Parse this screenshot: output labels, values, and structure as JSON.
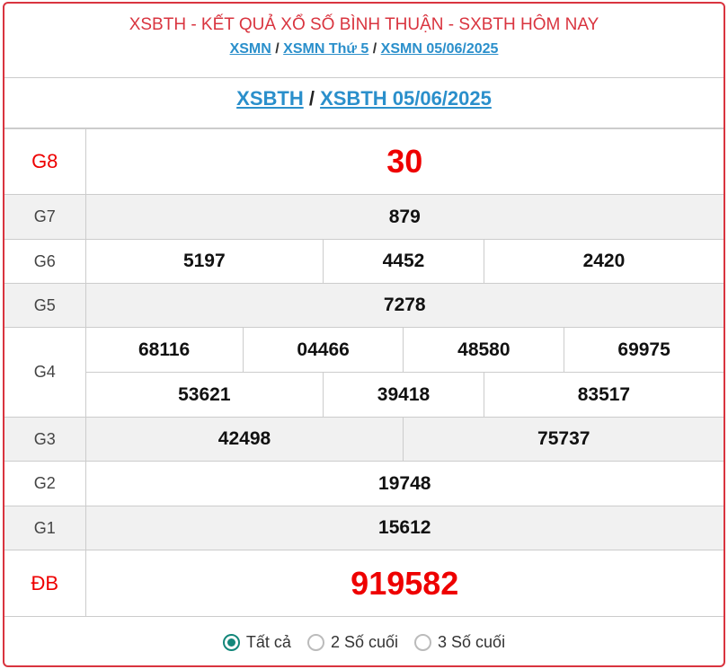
{
  "header": {
    "title": "XSBTH - KẾT QUẢ XỔ SỐ BÌNH THUẬN - SXBTH HÔM NAY",
    "links": [
      "XSMN",
      "XSMN Thứ 5",
      "XSMN 05/06/2025"
    ],
    "sep": "/"
  },
  "subheader": {
    "links": [
      "XSBTH",
      "XSBTH 05/06/2025"
    ]
  },
  "prizes": {
    "g8": {
      "label": "G8",
      "values": [
        "30"
      ]
    },
    "g7": {
      "label": "G7",
      "values": [
        "879"
      ]
    },
    "g6": {
      "label": "G6",
      "values": [
        "5197",
        "4452",
        "2420"
      ]
    },
    "g5": {
      "label": "G5",
      "values": [
        "7278"
      ]
    },
    "g4": {
      "label": "G4",
      "values": [
        "68116",
        "04466",
        "48580",
        "69975",
        "53621",
        "39418",
        "83517"
      ]
    },
    "g3": {
      "label": "G3",
      "values": [
        "42498",
        "75737"
      ]
    },
    "g2": {
      "label": "G2",
      "values": [
        "19748"
      ]
    },
    "g1": {
      "label": "G1",
      "values": [
        "15612"
      ]
    },
    "db": {
      "label": "ĐB",
      "values": [
        "919582"
      ]
    }
  },
  "filter": {
    "options": [
      "Tất cả",
      "2 Số cuối",
      "3 Số cuối"
    ],
    "selected": "Tất cả"
  },
  "colors": {
    "accent": "#d9343f",
    "link": "#2a8fcb",
    "radio": "#13877a",
    "special": "#e00000"
  }
}
